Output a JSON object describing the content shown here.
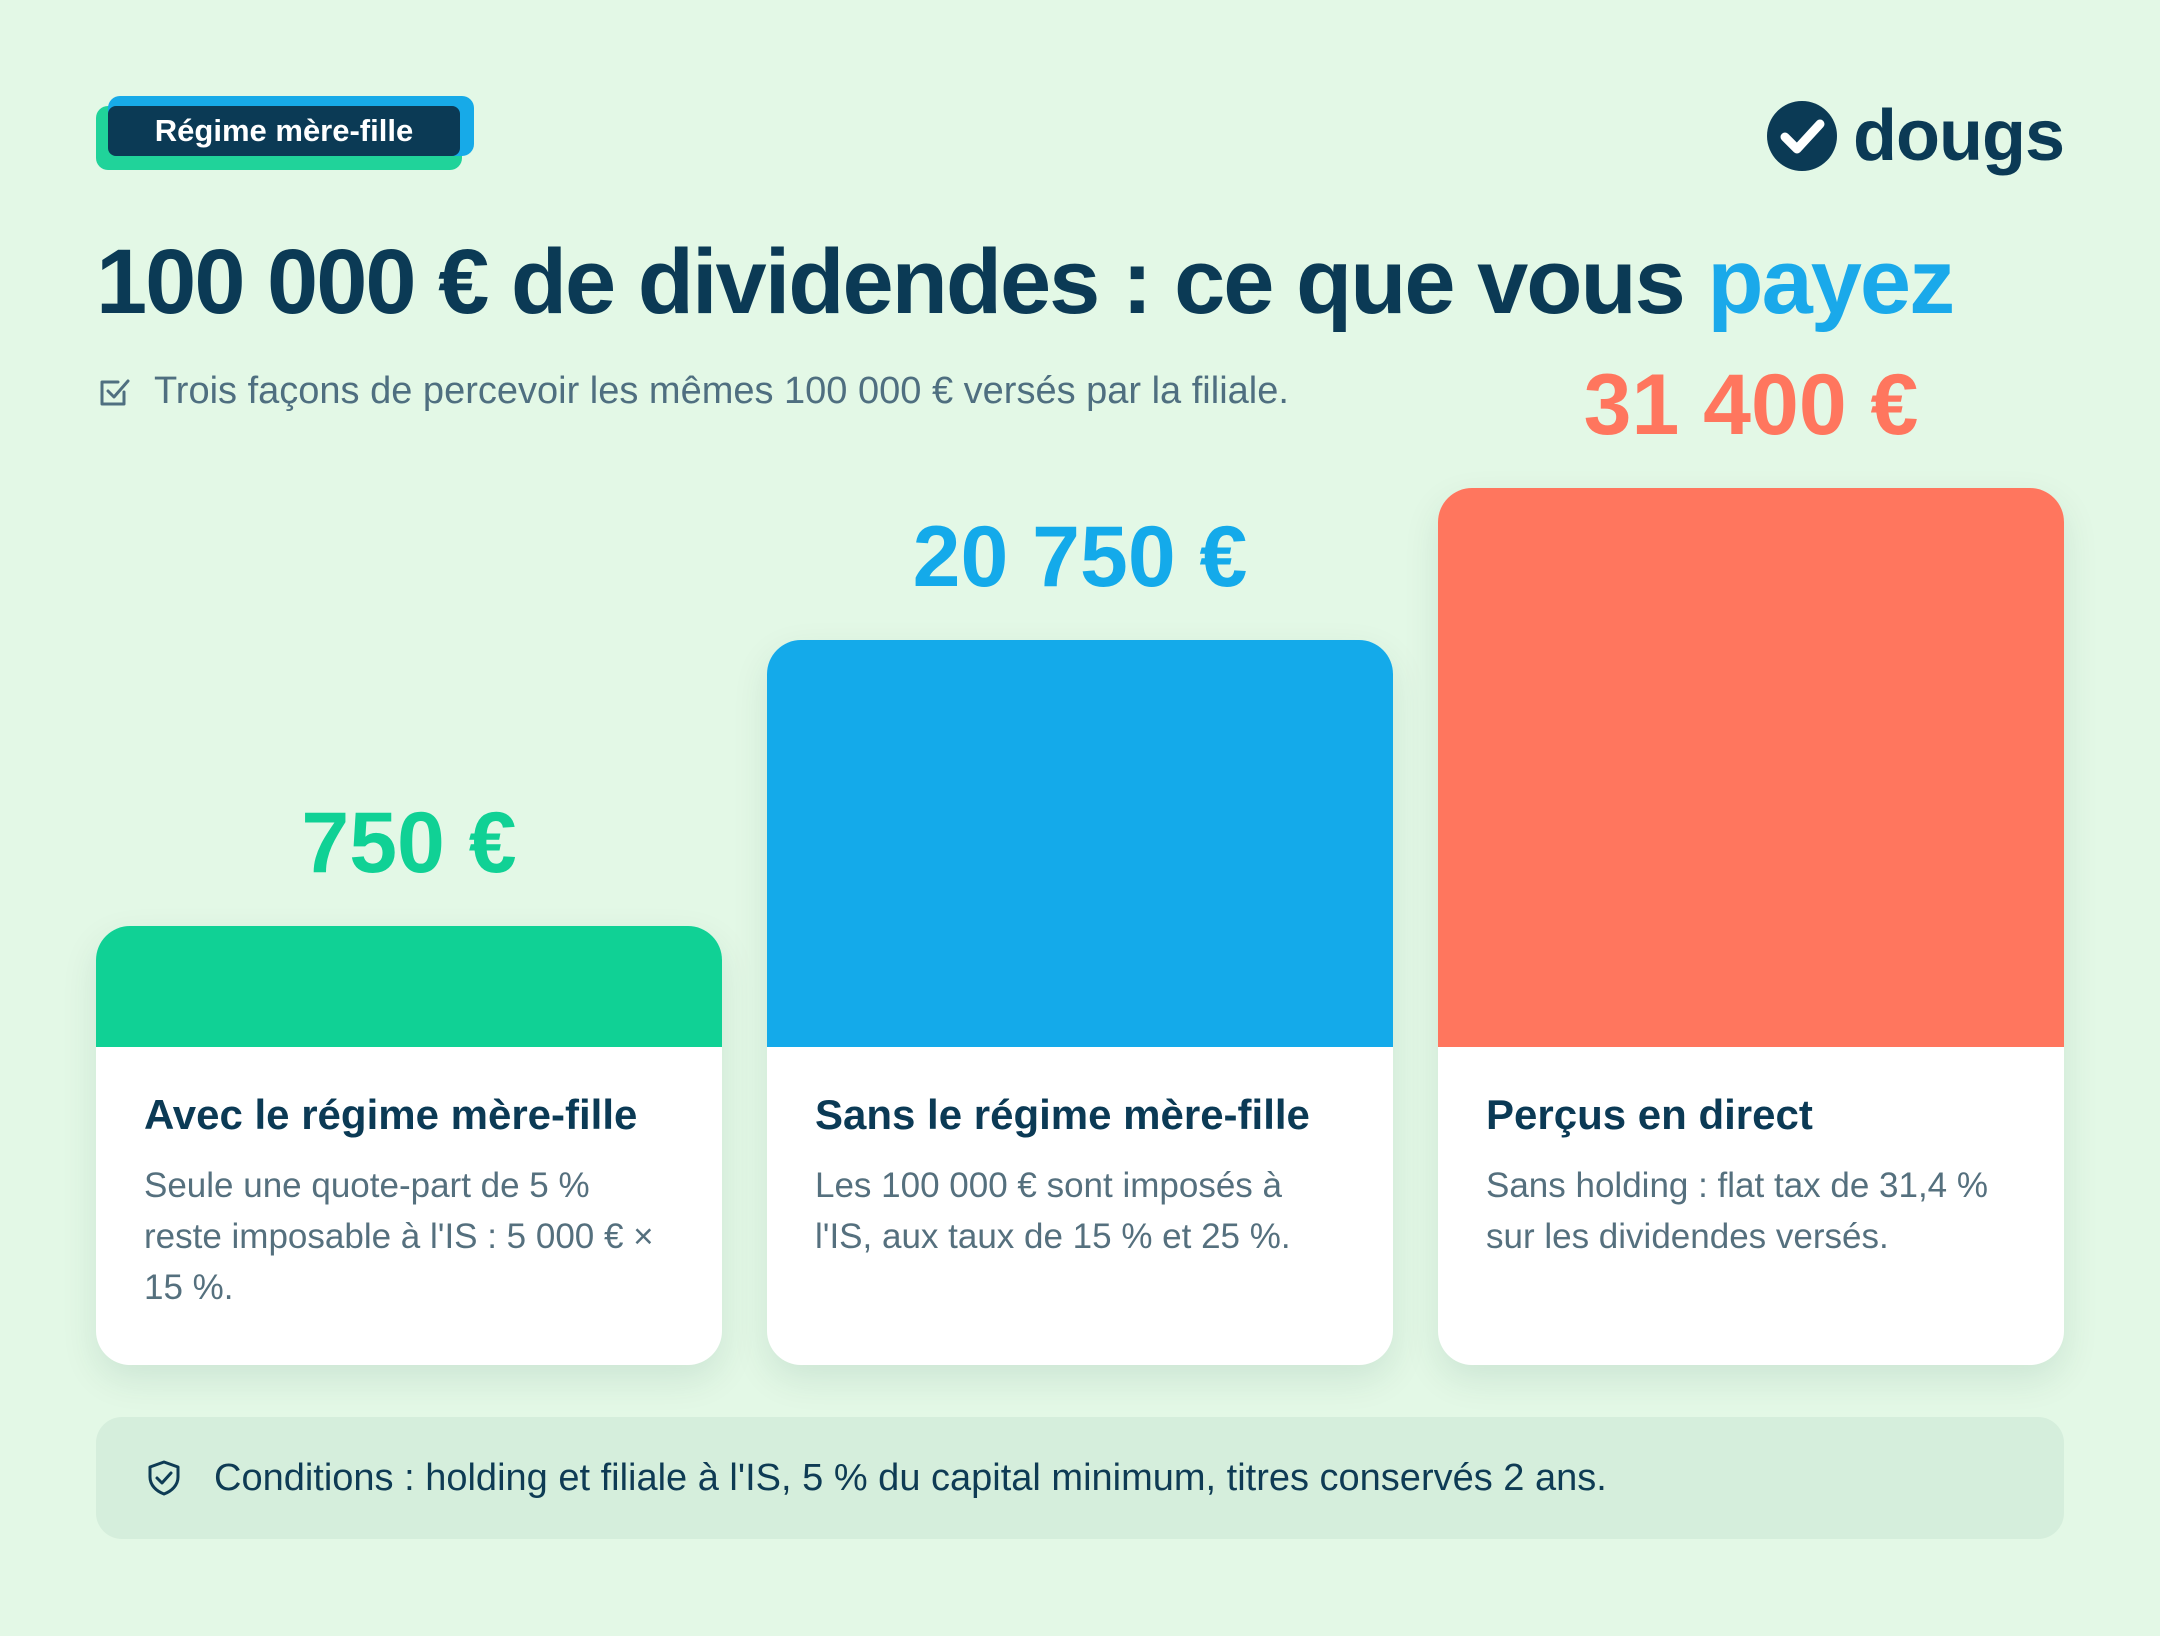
{
  "badge": {
    "label": "Régime mère-fille"
  },
  "logo": {
    "text": "dougs",
    "icon": "check-circle-icon"
  },
  "title": {
    "main": "100 000 € de dividendes : ce que vous ",
    "accent": "payez"
  },
  "subtitle": {
    "icon": "checkbox-icon",
    "text": "Trois façons de percevoir les mêmes 100 000 € versés par la filiale."
  },
  "chart_data": {
    "type": "bar",
    "categories": [
      "Avec le régime mère-fille",
      "Sans le régime mère-fille",
      "Perçus en direct"
    ],
    "values": [
      750,
      20750,
      31400
    ],
    "value_labels": [
      "750 €",
      "20 750 €",
      "31 400 €"
    ],
    "descriptions": [
      "Seule une quote-part de 5 % reste imposable à l'IS : 5 000 € × 15 %.",
      "Les 100 000 € sont imposés à l'IS, aux taux de 15 % et 25 %.",
      "Sans holding : flat tax de 31,4 % sur les dividendes versés."
    ],
    "colors": [
      "#10d195",
      "#14aaea",
      "#ff765e"
    ],
    "title": "",
    "xlabel": "",
    "ylabel": "",
    "grid": false
  },
  "conditions": {
    "icon": "shield-check-icon",
    "text": "Conditions : holding et filiale à l'IS, 5 % du capital minimum, titres conservés 2 ans."
  },
  "colors": {
    "background": "#e3f8e6",
    "dark": "#0b3a55",
    "accent": "#1aa9ea"
  }
}
